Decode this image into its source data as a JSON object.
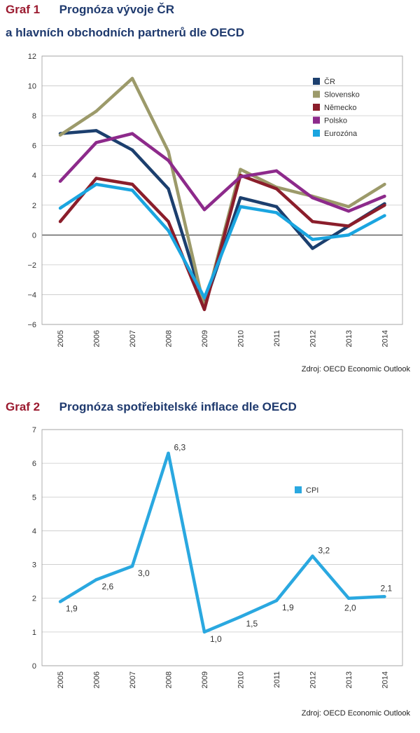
{
  "chart_data": [
    {
      "type": "line",
      "label": "Graf 1",
      "title_line1": "Prognóza vývoje ČR",
      "title_line2": "a hlavních obchodních partnerů dle OECD",
      "x": [
        "2005",
        "2006",
        "2007",
        "2008",
        "2009",
        "2010",
        "2011",
        "2012",
        "2013",
        "2014"
      ],
      "ylim": [
        -6,
        12
      ],
      "yticks": [
        12,
        10,
        8,
        6,
        4,
        2,
        0,
        -2,
        -4,
        -6
      ],
      "ytick_labels": [
        "12",
        "10",
        "8",
        "6",
        "4",
        "2",
        "0",
        "−2",
        "−4",
        "−6"
      ],
      "grid": true,
      "legend_position": "top-right",
      "source": "Zdroj: OECD Economic Outlook",
      "series": [
        {
          "name": "ČR",
          "color": "#1c3f6e",
          "values": [
            6.8,
            7.0,
            5.7,
            3.1,
            -4.7,
            2.5,
            1.9,
            -0.9,
            0.6,
            2.1
          ]
        },
        {
          "name": "Slovensko",
          "color": "#9c9a6a",
          "values": [
            6.7,
            8.3,
            10.5,
            5.6,
            -4.9,
            4.4,
            3.2,
            2.6,
            1.9,
            3.4
          ]
        },
        {
          "name": "Německo",
          "color": "#8b1e2b",
          "values": [
            0.9,
            3.8,
            3.4,
            0.9,
            -5.0,
            4.0,
            3.1,
            0.9,
            0.6,
            2.0
          ]
        },
        {
          "name": "Polsko",
          "color": "#8d2a8b",
          "values": [
            3.6,
            6.2,
            6.8,
            5.0,
            1.7,
            3.9,
            4.3,
            2.5,
            1.6,
            2.6
          ]
        },
        {
          "name": "Eurozóna",
          "color": "#1aa5e0",
          "values": [
            1.8,
            3.4,
            3.0,
            0.3,
            -4.2,
            1.9,
            1.5,
            -0.3,
            0.0,
            1.3
          ]
        }
      ]
    },
    {
      "type": "line",
      "label": "Graf 2",
      "title_line1": "Prognóza spotřebitelské inflace dle OECD",
      "x": [
        "2005",
        "2006",
        "2007",
        "2008",
        "2009",
        "2010",
        "2011",
        "2012",
        "2013",
        "2014"
      ],
      "ylim": [
        0,
        7
      ],
      "yticks": [
        7,
        6,
        5,
        4,
        3,
        2,
        1,
        0
      ],
      "ytick_labels": [
        "7",
        "6",
        "5",
        "4",
        "3",
        "2",
        "1",
        "0"
      ],
      "grid": true,
      "legend_position": "top-right",
      "source": "Zdroj: OECD Economic Outlook",
      "series": [
        {
          "name": "CPI",
          "color": "#2aa8e0",
          "values": [
            1.9,
            2.55,
            2.95,
            6.3,
            1.0,
            1.45,
            1.93,
            3.25,
            2.0,
            2.05
          ],
          "data_labels": [
            "1,9",
            "2,6",
            "3,0",
            "6,3",
            "1,0",
            "1,5",
            "1,9",
            "3,2",
            "2,0",
            "2,1"
          ]
        }
      ]
    }
  ]
}
